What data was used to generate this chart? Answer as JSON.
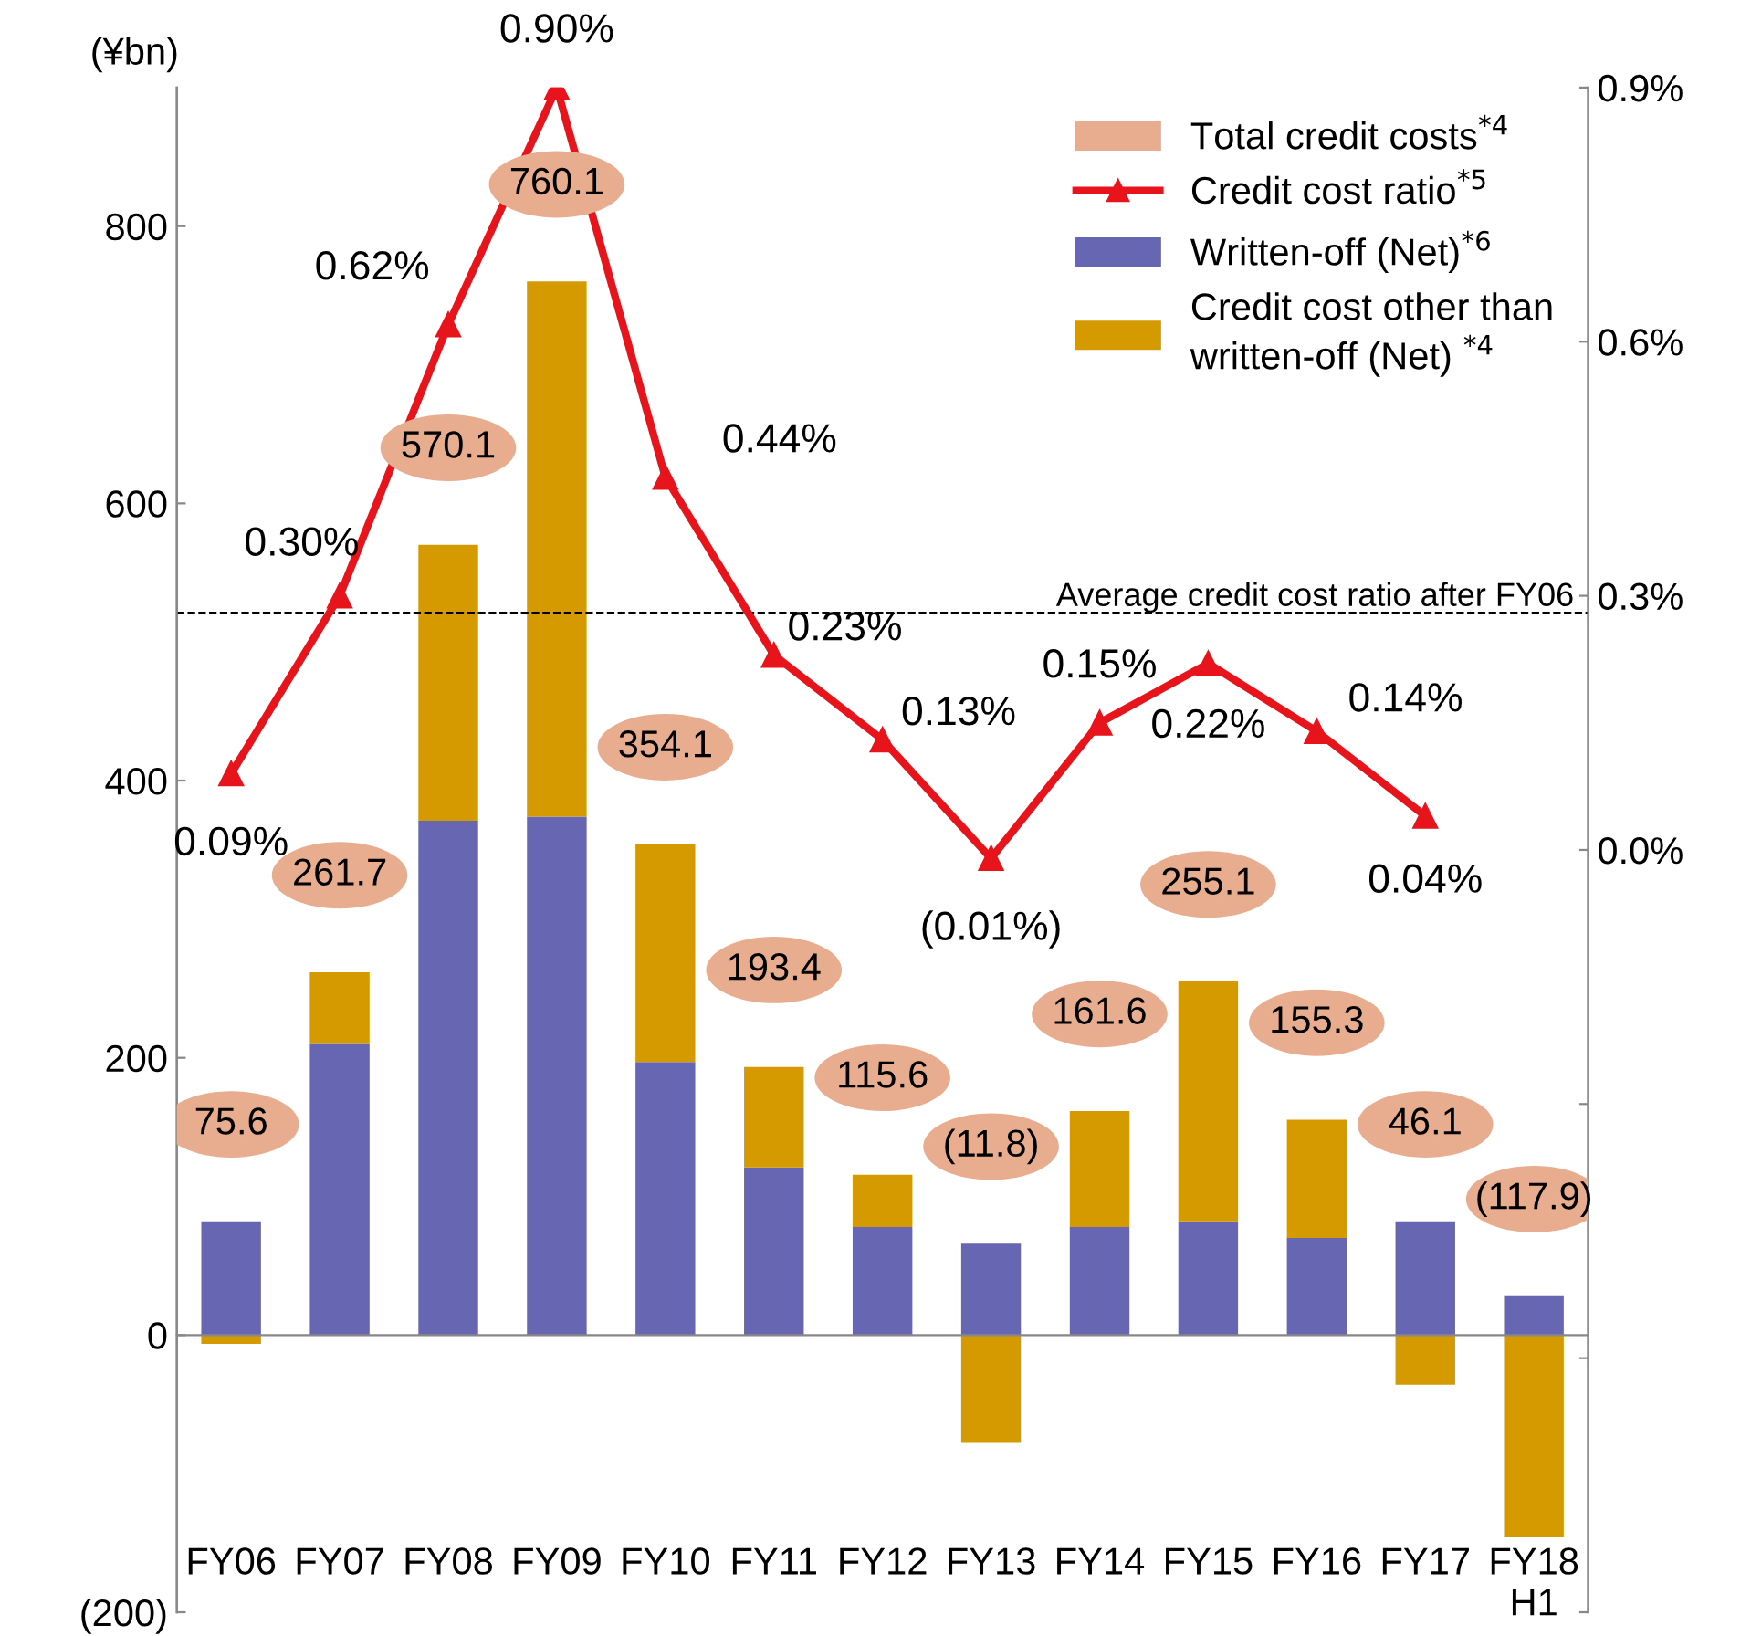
{
  "chart_data": {
    "type": "bar",
    "stacked": true,
    "ylabel": "(¥bn)",
    "categories": [
      "FY06",
      "FY07",
      "FY08",
      "FY09",
      "FY10",
      "FY11",
      "FY12",
      "FY13",
      "FY14",
      "FY15",
      "FY16",
      "FY17",
      "FY18\nH1"
    ],
    "totals": [
      "75.6",
      "261.7",
      "570.1",
      "760.1",
      "354.1",
      "193.4",
      "115.6",
      "(11.8)",
      "161.6",
      "255.1",
      "155.3",
      "46.1",
      "(117.9)"
    ],
    "series": [
      {
        "name": "Total credit costs$^{*4}$",
        "type": "scatter",
        "color": "#e8ad8f",
        "values": [
          null,
          null,
          null,
          null,
          null,
          null,
          null,
          null,
          null,
          null,
          null,
          null,
          null
        ]
      },
      {
        "name": "Credit cost ratio$^{*5}$",
        "type": "line",
        "axis": "y2",
        "color": "#e8141b",
        "marker": "triangle",
        "values": [
          0.09,
          0.3,
          0.62,
          0.9,
          0.44,
          0.23,
          0.13,
          -0.01,
          0.15,
          0.22,
          0.14,
          0.04,
          null
        ],
        "value_labels": [
          "0.09%",
          "0.30%",
          "0.62%",
          "0.90%",
          "0.44%",
          "0.23%",
          "0.13%",
          "(0.01%)",
          "0.15%",
          "0.22%",
          "0.14%",
          "0.04%",
          null
        ]
      },
      {
        "name": "Written-off (Net)$^{*6}$",
        "color": "#6666b3",
        "values": [
          82,
          210,
          371,
          374,
          197,
          121,
          78,
          66,
          78,
          82,
          70,
          82,
          28
        ]
      },
      {
        "name": "Credit cost other than\nwritten-off (Net) $^{*4}$",
        "color": "#d49a00",
        "values": [
          -6.4,
          51.7,
          199.1,
          386.1,
          157.1,
          72.4,
          37.6,
          -77.8,
          83.6,
          173.1,
          85.3,
          -35.9,
          -145.9
        ]
      }
    ],
    "ylim": [
      -200,
      900
    ],
    "yticks": [
      {
        "value": -200,
        "label": "(200)"
      },
      0,
      200,
      400,
      600,
      800
    ],
    "y2lim": [
      -0.9,
      0.9
    ],
    "y2ticks": [
      {
        "value": -0.9,
        "label": null
      },
      {
        "value": -0.6,
        "label": null
      },
      {
        "value": -0.3,
        "label": null
      },
      {
        "value": 0,
        "label": "0.0%"
      },
      {
        "value": 0.3,
        "label": "0.3%"
      },
      {
        "value": 0.6,
        "label": "0.6%"
      },
      {
        "value": 0.9,
        "label": "0.9%"
      }
    ],
    "ref_lines": [
      {
        "axis": "y2",
        "value": 0.28,
        "label": "Average credit cost ratio after FY06",
        "color": "#000000",
        "line_style": "dashed"
      }
    ],
    "legend": "top right"
  }
}
